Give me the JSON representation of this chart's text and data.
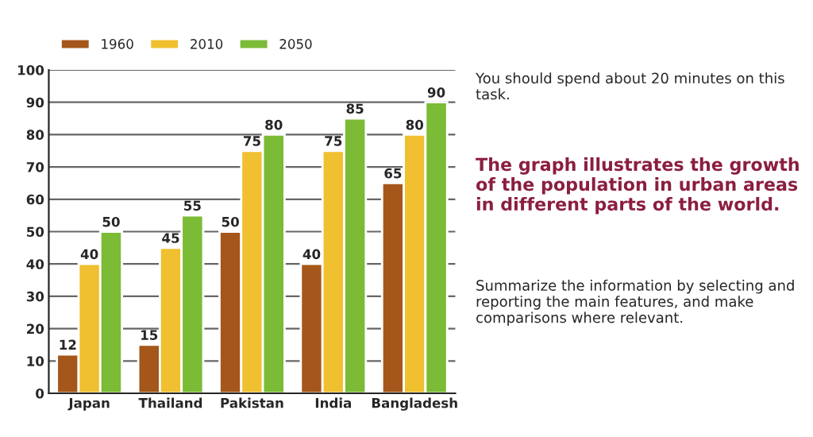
{
  "chart_data": {
    "type": "bar",
    "title": "The graph illustrates the growth of the population in urban areas in different parts of the world.",
    "categories": [
      "Japan",
      "Thailand",
      "Pakistan",
      "India",
      "Bangladesh"
    ],
    "series": [
      {
        "name": "1960",
        "color": "#a5561a",
        "values": [
          12,
          15,
          50,
          40,
          65
        ]
      },
      {
        "name": "2010",
        "color": "#f0c030",
        "values": [
          40,
          45,
          75,
          75,
          80
        ]
      },
      {
        "name": "2050",
        "color": "#7bbb35",
        "values": [
          50,
          55,
          80,
          85,
          90
        ]
      }
    ],
    "ylim": [
      0,
      100
    ],
    "yticks": [
      0,
      10,
      20,
      30,
      40,
      50,
      60,
      70,
      80,
      90,
      100
    ],
    "grid": "y",
    "legend": "top left",
    "data_labels": true,
    "annotations": [
      "You should spend about 20 minutes on this task.",
      "Summarize the information by selecting and reporting the main features, and make comparisons where relevant."
    ]
  }
}
